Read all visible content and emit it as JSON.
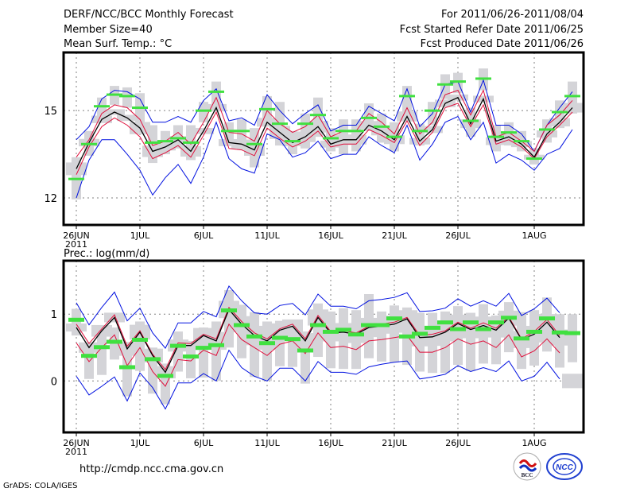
{
  "header": {
    "title": "DERF/NCC/BCC Monthly Forecast",
    "member_size": "Member Size=40",
    "variable_top": "Mean Surf. Temp.: °C",
    "period": "For 2011/06/26-2011/08/04",
    "started_refer": "Fcst Started Refer Date 2011/06/25",
    "produced": "Fcst Produced Date 2011/06/26"
  },
  "footer": {
    "url": "http://cmdp.ncc.cma.gov.cn",
    "credit": "GrADS: COLA/IGES",
    "logos": [
      "BCC",
      "NCC"
    ]
  },
  "colors": {
    "mean": "#000000",
    "red_band": "#e0103c",
    "blue_band": "#0010e0",
    "marker": "#40e040",
    "box": "#d4d4d8",
    "grid": "#808080"
  },
  "chart_data": [
    {
      "type": "line",
      "title": "Mean Surf. Temp.: °C",
      "xlabel": "",
      "ylabel": "",
      "x_start": "2011-06-26",
      "n_days": 40,
      "x_ticks": [
        "26JUN",
        "1JUL",
        "6JUL",
        "11JUL",
        "16JUL",
        "21JUL",
        "26JUL",
        "1AUG"
      ],
      "x_tick_days": [
        0,
        5,
        10,
        15,
        20,
        25,
        30,
        36
      ],
      "x_tick_sublabel": "2011",
      "y_ticks": [
        12,
        15
      ],
      "ylim": [
        11.07,
        17.0
      ],
      "grid": true,
      "series": [
        {
          "name": "ensemble-mean",
          "color": "black",
          "values": [
            13.0,
            13.9,
            14.7,
            14.95,
            14.75,
            14.4,
            13.6,
            13.75,
            14.0,
            13.6,
            14.3,
            15.1,
            13.9,
            13.85,
            13.65,
            14.6,
            14.25,
            13.9,
            14.1,
            14.45,
            13.85,
            14.0,
            14.0,
            14.5,
            14.3,
            14.0,
            14.8,
            13.95,
            14.35,
            15.25,
            15.45,
            14.55,
            15.4,
            13.95,
            14.1,
            13.85,
            13.4,
            14.2,
            14.6,
            15.1
          ]
        },
        {
          "name": "red-upper",
          "color": "red",
          "values": [
            13.4,
            14.0,
            14.9,
            15.2,
            15.1,
            14.7,
            13.8,
            13.95,
            14.25,
            13.85,
            14.6,
            15.45,
            14.25,
            14.2,
            13.95,
            15.0,
            14.55,
            14.25,
            14.45,
            14.85,
            14.1,
            14.3,
            14.3,
            14.9,
            14.6,
            14.2,
            15.1,
            14.2,
            14.6,
            15.55,
            15.7,
            14.85,
            15.7,
            14.1,
            14.25,
            13.95,
            13.6,
            14.5,
            14.85,
            15.35
          ]
        },
        {
          "name": "red-lower",
          "color": "red",
          "values": [
            12.8,
            13.75,
            14.45,
            14.75,
            14.5,
            14.1,
            13.35,
            13.55,
            13.8,
            13.4,
            14.15,
            14.95,
            13.7,
            13.65,
            13.45,
            14.4,
            14.05,
            13.75,
            13.95,
            14.3,
            13.75,
            13.85,
            13.85,
            14.35,
            14.15,
            13.9,
            14.65,
            13.8,
            14.25,
            15.1,
            15.25,
            14.45,
            15.2,
            13.85,
            14.0,
            13.75,
            13.35,
            14.1,
            14.5,
            14.95
          ]
        },
        {
          "name": "blue-upper",
          "color": "blue",
          "values": [
            14.0,
            14.45,
            15.4,
            15.7,
            15.65,
            15.4,
            14.6,
            14.6,
            14.8,
            14.6,
            15.35,
            15.75,
            14.65,
            14.75,
            14.5,
            15.55,
            15.0,
            14.55,
            14.9,
            15.2,
            14.3,
            14.5,
            14.5,
            15.15,
            14.9,
            14.65,
            15.75,
            14.45,
            14.9,
            15.9,
            16.0,
            14.95,
            16.05,
            14.5,
            14.5,
            14.2,
            13.6,
            14.5,
            15.1,
            15.65
          ]
        },
        {
          "name": "blue-lower",
          "color": "blue",
          "values": [
            12.0,
            13.3,
            14.0,
            14.0,
            13.5,
            12.95,
            12.1,
            12.7,
            13.15,
            12.5,
            13.4,
            14.6,
            13.35,
            13.0,
            12.85,
            14.2,
            14.0,
            13.4,
            13.55,
            13.95,
            13.35,
            13.5,
            13.5,
            14.1,
            13.8,
            13.55,
            14.5,
            13.3,
            13.85,
            14.6,
            14.8,
            14.0,
            14.6,
            13.2,
            13.5,
            13.3,
            12.95,
            13.5,
            13.7,
            14.35
          ]
        },
        {
          "name": "green-marker",
          "color": "green",
          "values": [
            12.65,
            13.85,
            15.15,
            15.55,
            15.5,
            15.1,
            13.9,
            13.95,
            14.05,
            13.9,
            15.0,
            15.65,
            14.3,
            14.3,
            13.85,
            15.05,
            14.55,
            13.95,
            14.55,
            14.85,
            14.05,
            14.3,
            14.3,
            14.75,
            14.45,
            14.1,
            15.5,
            14.3,
            15.0,
            15.9,
            16.0,
            14.65,
            16.1,
            14.1,
            14.25,
            13.95,
            13.35,
            14.35,
            14.95,
            15.5
          ]
        },
        {
          "name": "box-top",
          "color": "grey",
          "values": [
            13.4,
            14.3,
            15.45,
            15.85,
            15.8,
            15.6,
            14.5,
            14.3,
            14.5,
            14.5,
            15.3,
            16.0,
            14.6,
            14.7,
            14.4,
            15.5,
            15.3,
            14.3,
            14.9,
            15.45,
            14.4,
            14.7,
            14.7,
            15.25,
            14.9,
            14.6,
            15.85,
            14.55,
            15.3,
            16.25,
            16.3,
            15.1,
            16.45,
            14.5,
            14.6,
            14.3,
            13.7,
            14.7,
            15.35,
            16.0
          ]
        },
        {
          "name": "box-bottom",
          "color": "grey",
          "values": [
            11.95,
            13.45,
            14.6,
            15.2,
            15.1,
            14.2,
            13.2,
            13.5,
            13.7,
            13.3,
            14.6,
            15.15,
            13.8,
            13.65,
            13.05,
            14.5,
            13.8,
            13.5,
            13.7,
            14.1,
            13.6,
            13.5,
            13.6,
            14.3,
            13.9,
            13.6,
            14.7,
            13.8,
            14.5,
            15.4,
            15.6,
            14.1,
            15.7,
            13.6,
            13.8,
            13.6,
            13.15,
            13.9,
            14.4,
            14.9
          ]
        }
      ]
    },
    {
      "type": "line",
      "title": "Prec.: log(mm/d)",
      "xlabel": "",
      "ylabel": "",
      "x_start": "2011-06-26",
      "n_days": 40,
      "x_ticks": [
        "26JUN",
        "1JUL",
        "6JUL",
        "11JUL",
        "16JUL",
        "21JUL",
        "26JUL",
        "1AUG"
      ],
      "x_tick_days": [
        0,
        5,
        10,
        15,
        20,
        25,
        30,
        36
      ],
      "x_tick_sublabel": "2011",
      "y_ticks": [
        0,
        1
      ],
      "ylim": [
        -0.77,
        1.8
      ],
      "grid": true,
      "series": [
        {
          "name": "ensemble-mean",
          "color": "black",
          "values": [
            0.8,
            0.5,
            0.75,
            0.95,
            0.48,
            0.73,
            0.38,
            0.13,
            0.53,
            0.53,
            0.68,
            0.6,
            1.07,
            0.85,
            0.68,
            0.6,
            0.76,
            0.82,
            0.6,
            0.95,
            0.72,
            0.73,
            0.7,
            0.8,
            0.82,
            0.85,
            0.93,
            0.65,
            0.66,
            0.73,
            0.86,
            0.77,
            0.83,
            0.76,
            0.94,
            0.62,
            0.7,
            0.88,
            0.65,
            0.0
          ]
        },
        {
          "name": "red-upper",
          "color": "red",
          "values": [
            0.85,
            0.56,
            0.78,
            0.99,
            0.52,
            0.75,
            0.4,
            0.17,
            0.57,
            0.56,
            0.7,
            0.63,
            1.1,
            0.89,
            0.72,
            0.63,
            0.78,
            0.85,
            0.63,
            0.98,
            0.74,
            0.75,
            0.72,
            0.82,
            0.85,
            0.88,
            0.95,
            0.68,
            0.7,
            0.75,
            0.88,
            0.79,
            0.87,
            0.79,
            0.96,
            0.63,
            0.74,
            0.92,
            0.68,
            0.0
          ]
        },
        {
          "name": "red-lower",
          "color": "red",
          "values": [
            0.57,
            0.29,
            0.5,
            0.69,
            0.23,
            0.5,
            0.14,
            -0.08,
            0.32,
            0.3,
            0.46,
            0.38,
            0.85,
            0.62,
            0.5,
            0.38,
            0.55,
            0.6,
            0.41,
            0.72,
            0.5,
            0.52,
            0.47,
            0.6,
            0.62,
            0.65,
            0.68,
            0.43,
            0.43,
            0.5,
            0.63,
            0.55,
            0.6,
            0.5,
            0.69,
            0.36,
            0.45,
            0.63,
            0.42,
            0.0
          ]
        },
        {
          "name": "blue-upper",
          "color": "blue",
          "values": [
            1.17,
            0.84,
            1.1,
            1.33,
            0.9,
            1.09,
            0.72,
            0.49,
            0.87,
            0.87,
            1.04,
            0.96,
            1.42,
            1.2,
            1.02,
            1.0,
            1.13,
            1.16,
            0.99,
            1.3,
            1.12,
            1.12,
            1.08,
            1.2,
            1.22,
            1.25,
            1.32,
            1.04,
            1.05,
            1.09,
            1.23,
            1.12,
            1.2,
            1.12,
            1.31,
            0.98,
            1.08,
            1.24,
            1.02,
            0.0
          ]
        },
        {
          "name": "blue-lower",
          "color": "blue",
          "values": [
            0.07,
            -0.21,
            -0.08,
            0.06,
            -0.3,
            0.12,
            -0.1,
            -0.42,
            -0.03,
            -0.03,
            0.11,
            0.0,
            0.46,
            0.2,
            0.07,
            0.0,
            0.19,
            0.19,
            0.0,
            0.29,
            0.13,
            0.13,
            0.1,
            0.21,
            0.25,
            0.28,
            0.3,
            0.03,
            0.06,
            0.1,
            0.23,
            0.14,
            0.2,
            0.14,
            0.3,
            0.0,
            0.07,
            0.28,
            0.03,
            0.0
          ]
        },
        {
          "name": "green-marker",
          "color": "green",
          "values": [
            0.91,
            0.37,
            0.5,
            0.58,
            0.2,
            0.61,
            0.32,
            0.07,
            0.52,
            0.36,
            0.49,
            0.53,
            1.05,
            0.83,
            0.66,
            0.56,
            0.64,
            0.62,
            0.45,
            0.83,
            0.73,
            0.76,
            0.69,
            0.83,
            0.83,
            0.93,
            0.66,
            0.7,
            0.79,
            0.87,
            0.77,
            0.87,
            0.77,
            0.87,
            0.94,
            0.63,
            0.73,
            0.93,
            0.72,
            0.71
          ]
        },
        {
          "name": "box-top",
          "color": "grey",
          "values": [
            1.08,
            0.55,
            0.67,
            0.8,
            0.46,
            0.89,
            0.5,
            0.26,
            0.74,
            0.5,
            0.8,
            0.89,
            1.36,
            1.14,
            1.03,
            0.89,
            0.9,
            0.88,
            0.74,
            1.16,
            1.04,
            1.09,
            1.06,
            1.3,
            1.04,
            1.13,
            1.1,
            1.02,
            1.02,
            1.04,
            1.12,
            1.02,
            1.15,
            0.98,
            1.18,
            1.03,
            1.06,
            1.25,
            1.0,
            1.0
          ]
        },
        {
          "name": "box-bottom",
          "color": "grey",
          "values": [
            0.68,
            0.03,
            0.09,
            0.32,
            -0.23,
            0.15,
            -0.19,
            -0.35,
            0.14,
            0.04,
            0.05,
            0.0,
            0.5,
            0.34,
            0.06,
            0.0,
            0.22,
            0.21,
            -0.04,
            0.36,
            0.19,
            0.18,
            0.18,
            0.34,
            0.29,
            0.28,
            0.24,
            0.14,
            0.12,
            0.12,
            0.24,
            0.15,
            0.26,
            0.25,
            0.43,
            0.18,
            0.23,
            0.44,
            0.2,
            0.28
          ]
        }
      ]
    }
  ]
}
